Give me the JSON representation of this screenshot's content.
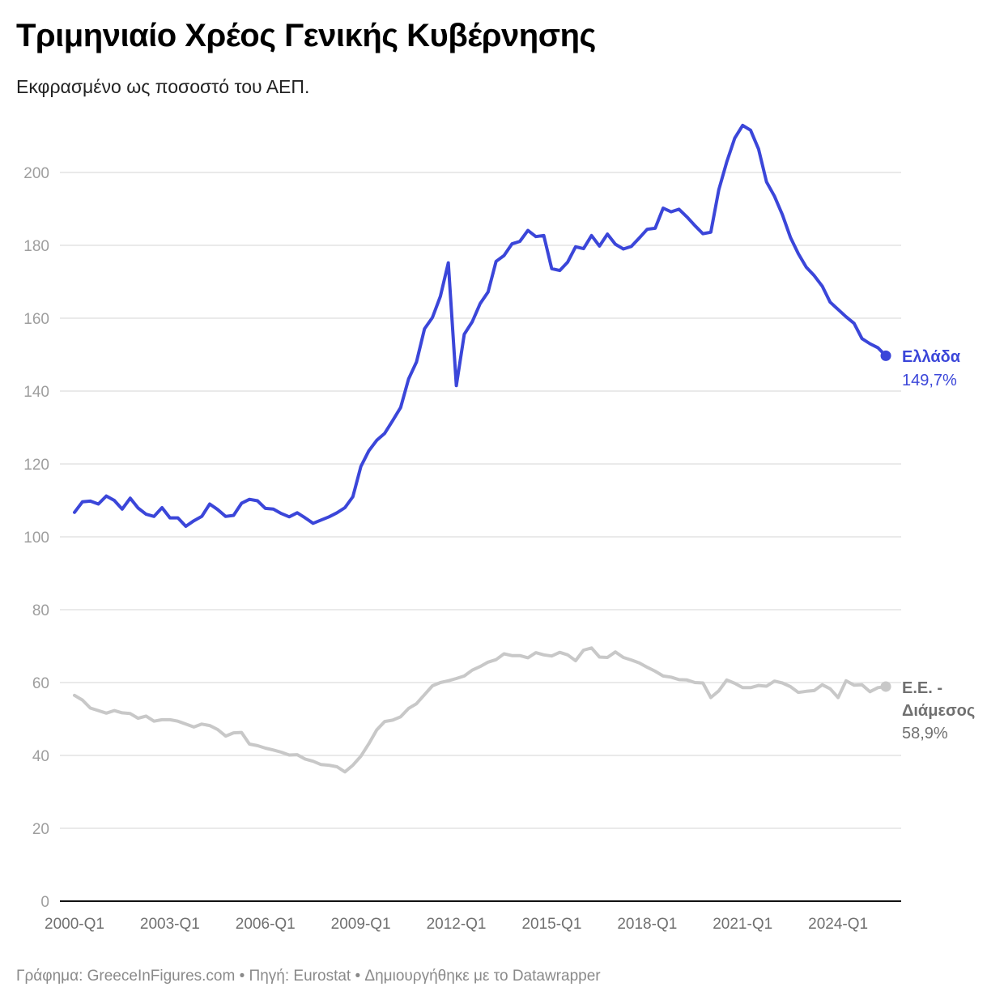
{
  "header": {
    "title": "Τριμηνιαίο Χρέος Γενικής Κυβέρνησης",
    "subtitle": "Εκφρασμένο ως ποσοστό του ΑΕΠ."
  },
  "footer": {
    "text": "Γράφημα: GreeceInFigures.com • Πηγή: Eurostat • Δημιουργήθηκε με το Datawrapper"
  },
  "chart_data": {
    "type": "line",
    "title": "Τριμηνιαίο Χρέος Γενικής Κυβέρνησης",
    "subtitle": "Εκφρασμένο ως ποσοστό του ΑΕΠ.",
    "xlabel": "",
    "ylabel": "",
    "ylim": [
      0,
      215
    ],
    "yticks": [
      0,
      20,
      40,
      60,
      80,
      100,
      120,
      140,
      160,
      180,
      200
    ],
    "xticks": [
      "2000-Q1",
      "2003-Q1",
      "2006-Q1",
      "2009-Q1",
      "2012-Q1",
      "2015-Q1",
      "2018-Q1",
      "2021-Q1",
      "2024-Q1"
    ],
    "x_start": "2000-Q1",
    "x_end": "2025-Q3",
    "grid": true,
    "legend_position": "end-of-line labels",
    "series": [
      {
        "name": "Ελλάδα",
        "color": "#3b46d9",
        "end_label": "149,7%",
        "values": [
          106.7,
          109.6,
          109.8,
          109.0,
          111.2,
          110.0,
          107.6,
          110.6,
          107.9,
          106.2,
          105.6,
          108.0,
          105.2,
          105.2,
          102.9,
          104.4,
          105.6,
          109.0,
          107.5,
          105.6,
          105.9,
          109.2,
          110.3,
          109.9,
          107.8,
          107.6,
          106.4,
          105.5,
          106.6,
          105.2,
          103.7,
          104.6,
          105.5,
          106.6,
          108.0,
          111.0,
          119.3,
          123.6,
          126.5,
          128.4,
          131.9,
          135.5,
          143.3,
          148.0,
          157.1,
          160.2,
          166.0,
          175.2,
          141.5,
          155.6,
          159.0,
          164.0,
          167.2,
          175.6,
          177.2,
          180.4,
          181.1,
          184.1,
          182.4,
          182.7,
          173.6,
          173.1,
          175.4,
          179.6,
          179.1,
          182.7,
          179.8,
          183.1,
          180.3,
          179.0,
          179.7,
          182.0,
          184.4,
          184.7,
          190.2,
          189.2,
          189.9,
          187.8,
          185.4,
          183.2,
          183.6,
          195.2,
          202.9,
          209.4,
          212.9,
          211.6,
          206.4,
          197.4,
          193.5,
          188.4,
          182.2,
          177.7,
          174.0,
          171.7,
          168.8,
          164.4,
          162.4,
          160.4,
          158.6,
          154.4,
          153.0,
          151.9,
          149.7
        ]
      },
      {
        "name": "Ε.Ε. - Διάμεσος",
        "color": "#c8c8c8",
        "end_label": "58,9%",
        "values": [
          56.5,
          55.2,
          53.0,
          52.3,
          51.6,
          52.3,
          51.7,
          51.5,
          50.2,
          50.8,
          49.4,
          49.8,
          49.8,
          49.4,
          48.6,
          47.8,
          48.6,
          48.2,
          47.1,
          45.3,
          46.2,
          46.3,
          43.1,
          42.7,
          42.0,
          41.5,
          40.9,
          40.1,
          40.2,
          39.0,
          38.4,
          37.5,
          37.3,
          36.9,
          35.5,
          37.3,
          39.8,
          43.2,
          47.0,
          49.3,
          49.7,
          50.6,
          52.9,
          54.2,
          56.7,
          59.1,
          60.0,
          60.5,
          61.1,
          61.8,
          63.4,
          64.4,
          65.6,
          66.3,
          67.9,
          67.4,
          67.4,
          66.8,
          68.2,
          67.6,
          67.3,
          68.3,
          67.6,
          66.0,
          68.9,
          69.5,
          67.0,
          66.9,
          68.4,
          66.9,
          66.2,
          65.4,
          64.2,
          63.1,
          61.8,
          61.5,
          60.8,
          60.7,
          60.0,
          59.9,
          55.9,
          57.7,
          60.7,
          59.8,
          58.6,
          58.6,
          59.2,
          59.0,
          60.4,
          59.9,
          58.9,
          57.3,
          57.6,
          57.8,
          59.4,
          58.3,
          55.9,
          60.5,
          59.3,
          59.4,
          57.5,
          58.6,
          58.9
        ]
      }
    ]
  },
  "labels": {
    "greece_name": "Ελλάδα",
    "greece_value": "149,7%",
    "eu_name_line1": "Ε.Ε. -",
    "eu_name_line2": "Διάμεσος",
    "eu_value": "58,9%"
  }
}
